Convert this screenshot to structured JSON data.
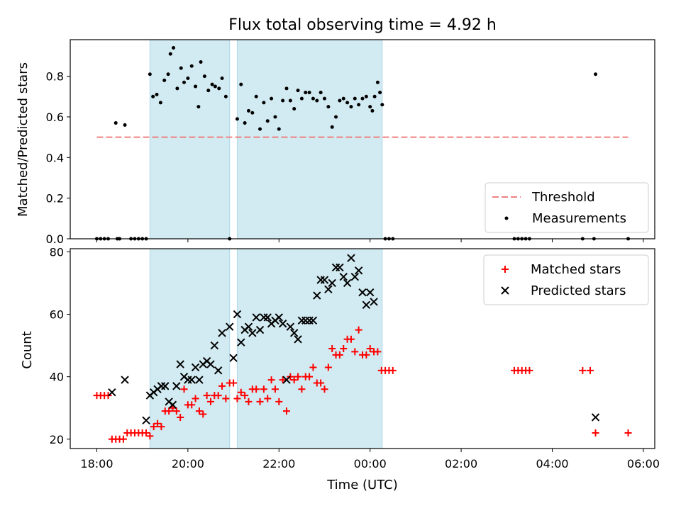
{
  "title": "Flux total observing time = 4.92 h",
  "xlabel": "Time (UTC)",
  "x_ticks": [
    "18:00",
    "20:00",
    "22:00",
    "00:00",
    "02:00",
    "04:00",
    "06:00"
  ],
  "colors": {
    "threshold": "#f08080",
    "measurement": "#000000",
    "matched": "#ff0000",
    "predicted": "#000000",
    "span_fill": "#add8e6"
  },
  "chart_data": [
    {
      "type": "scatter",
      "ylabel": "Matched/Predicted stars",
      "y_ticks": [
        "0.0",
        "0.2",
        "0.4",
        "0.6",
        "0.8"
      ],
      "xlim": [
        "17:25",
        "06:15"
      ],
      "ylim": [
        0.0,
        0.98
      ],
      "grid": false,
      "legend_placement": "lower right",
      "shaded_intervals": [
        [
          "19:10",
          "20:55"
        ],
        [
          "21:05",
          "00:16"
        ]
      ],
      "threshold": {
        "name": "Threshold",
        "value": 0.5,
        "x_range": [
          "18:00",
          "05:40"
        ],
        "style": "dashed"
      },
      "series": [
        {
          "name": "Measurements",
          "marker": "dot",
          "points": [
            [
              "18:00",
              0.0
            ],
            [
              "18:05",
              0.0
            ],
            [
              "18:10",
              0.0
            ],
            [
              "18:15",
              0.0
            ],
            [
              "18:27",
              0.0
            ],
            [
              "18:30",
              0.0
            ],
            [
              "18:45",
              0.0
            ],
            [
              "18:50",
              0.0
            ],
            [
              "18:55",
              0.0
            ],
            [
              "19:00",
              0.0
            ],
            [
              "19:05",
              0.0
            ],
            [
              "18:25",
              0.57
            ],
            [
              "18:37",
              0.56
            ],
            [
              "19:10",
              0.81
            ],
            [
              "19:14",
              0.7
            ],
            [
              "19:19",
              0.71
            ],
            [
              "19:24",
              0.67
            ],
            [
              "19:29",
              0.78
            ],
            [
              "19:34",
              0.81
            ],
            [
              "19:37",
              0.91
            ],
            [
              "19:41",
              0.94
            ],
            [
              "19:46",
              0.74
            ],
            [
              "19:51",
              0.84
            ],
            [
              "19:55",
              0.77
            ],
            [
              "20:00",
              0.79
            ],
            [
              "20:05",
              0.85
            ],
            [
              "20:10",
              0.75
            ],
            [
              "20:14",
              0.65
            ],
            [
              "20:17",
              0.87
            ],
            [
              "20:22",
              0.8
            ],
            [
              "20:27",
              0.73
            ],
            [
              "20:32",
              0.76
            ],
            [
              "20:36",
              0.75
            ],
            [
              "20:41",
              0.74
            ],
            [
              "20:45",
              0.79
            ],
            [
              "20:50",
              0.7
            ],
            [
              "20:55",
              0.0
            ],
            [
              "21:05",
              0.59
            ],
            [
              "21:10",
              0.76
            ],
            [
              "21:15",
              0.57
            ],
            [
              "21:20",
              0.63
            ],
            [
              "21:25",
              0.62
            ],
            [
              "21:30",
              0.7
            ],
            [
              "21:35",
              0.54
            ],
            [
              "21:40",
              0.67
            ],
            [
              "21:45",
              0.58
            ],
            [
              "21:50",
              0.69
            ],
            [
              "21:55",
              0.6
            ],
            [
              "22:00",
              0.54
            ],
            [
              "22:05",
              0.68
            ],
            [
              "22:10",
              0.74
            ],
            [
              "22:15",
              0.68
            ],
            [
              "22:20",
              0.64
            ],
            [
              "22:25",
              0.73
            ],
            [
              "22:30",
              0.69
            ],
            [
              "22:35",
              0.72
            ],
            [
              "22:40",
              0.72
            ],
            [
              "22:45",
              0.69
            ],
            [
              "22:50",
              0.68
            ],
            [
              "22:55",
              0.72
            ],
            [
              "23:00",
              0.69
            ],
            [
              "23:05",
              0.65
            ],
            [
              "23:10",
              0.55
            ],
            [
              "23:15",
              0.6
            ],
            [
              "23:20",
              0.68
            ],
            [
              "23:25",
              0.69
            ],
            [
              "23:30",
              0.67
            ],
            [
              "23:35",
              0.65
            ],
            [
              "23:40",
              0.69
            ],
            [
              "23:45",
              0.66
            ],
            [
              "23:50",
              0.69
            ],
            [
              "23:55",
              0.7
            ],
            [
              "00:00",
              0.65
            ],
            [
              "00:03",
              0.63
            ],
            [
              "00:06",
              0.7
            ],
            [
              "00:10",
              0.77
            ],
            [
              "00:13",
              0.72
            ],
            [
              "00:16",
              0.66
            ],
            [
              "00:20",
              0.0
            ],
            [
              "00:25",
              0.0
            ],
            [
              "00:30",
              0.0
            ],
            [
              "03:10",
              0.0
            ],
            [
              "03:15",
              0.0
            ],
            [
              "03:20",
              0.0
            ],
            [
              "03:25",
              0.0
            ],
            [
              "03:30",
              0.0
            ],
            [
              "04:40",
              0.0
            ],
            [
              "04:55",
              0.0
            ],
            [
              "04:57",
              0.81
            ],
            [
              "05:40",
              0.0
            ]
          ]
        }
      ]
    },
    {
      "type": "scatter",
      "ylabel": "Count",
      "y_ticks": [
        "20",
        "40",
        "60",
        "80"
      ],
      "xlim": [
        "17:25",
        "06:15"
      ],
      "ylim": [
        17,
        81
      ],
      "grid": false,
      "legend_placement": "upper right",
      "shaded_intervals": [
        [
          "19:10",
          "20:55"
        ],
        [
          "21:05",
          "00:16"
        ]
      ],
      "series": [
        {
          "name": "Matched stars",
          "marker": "plus",
          "points": [
            [
              "18:00",
              34
            ],
            [
              "18:05",
              34
            ],
            [
              "18:10",
              34
            ],
            [
              "18:15",
              34
            ],
            [
              "18:20",
              20
            ],
            [
              "18:25",
              20
            ],
            [
              "18:30",
              20
            ],
            [
              "18:35",
              20
            ],
            [
              "18:40",
              22
            ],
            [
              "18:45",
              22
            ],
            [
              "18:50",
              22
            ],
            [
              "18:55",
              22
            ],
            [
              "19:00",
              22
            ],
            [
              "19:05",
              22
            ],
            [
              "19:10",
              21
            ],
            [
              "19:15",
              24
            ],
            [
              "19:20",
              25
            ],
            [
              "19:25",
              24
            ],
            [
              "19:30",
              29
            ],
            [
              "19:35",
              29
            ],
            [
              "19:40",
              30
            ],
            [
              "19:45",
              29
            ],
            [
              "19:50",
              27
            ],
            [
              "19:55",
              36
            ],
            [
              "20:00",
              31
            ],
            [
              "20:05",
              31
            ],
            [
              "20:10",
              33
            ],
            [
              "20:15",
              29
            ],
            [
              "20:20",
              28
            ],
            [
              "20:25",
              34
            ],
            [
              "20:30",
              32
            ],
            [
              "20:35",
              34
            ],
            [
              "20:40",
              34
            ],
            [
              "20:45",
              37
            ],
            [
              "20:50",
              33
            ],
            [
              "20:55",
              38
            ],
            [
              "21:00",
              38
            ],
            [
              "21:05",
              33
            ],
            [
              "21:10",
              35
            ],
            [
              "21:15",
              34
            ],
            [
              "21:20",
              32
            ],
            [
              "21:25",
              36
            ],
            [
              "21:30",
              36
            ],
            [
              "21:35",
              32
            ],
            [
              "21:40",
              36
            ],
            [
              "21:45",
              33
            ],
            [
              "21:50",
              39
            ],
            [
              "21:55",
              36
            ],
            [
              "22:00",
              32
            ],
            [
              "22:05",
              39
            ],
            [
              "22:10",
              29
            ],
            [
              "22:15",
              40
            ],
            [
              "22:20",
              39
            ],
            [
              "22:25",
              40
            ],
            [
              "22:30",
              36
            ],
            [
              "22:35",
              40
            ],
            [
              "22:40",
              40
            ],
            [
              "22:45",
              43
            ],
            [
              "22:50",
              38
            ],
            [
              "22:55",
              38
            ],
            [
              "23:00",
              36
            ],
            [
              "23:05",
              43
            ],
            [
              "23:10",
              49
            ],
            [
              "23:15",
              47
            ],
            [
              "23:20",
              47
            ],
            [
              "23:25",
              49
            ],
            [
              "23:30",
              52
            ],
            [
              "23:35",
              52
            ],
            [
              "23:40",
              48
            ],
            [
              "23:45",
              55
            ],
            [
              "23:50",
              47
            ],
            [
              "23:55",
              47
            ],
            [
              "00:00",
              49
            ],
            [
              "00:05",
              48
            ],
            [
              "00:10",
              48
            ],
            [
              "00:15",
              42
            ],
            [
              "00:20",
              42
            ],
            [
              "00:25",
              42
            ],
            [
              "00:30",
              42
            ],
            [
              "03:10",
              42
            ],
            [
              "03:15",
              42
            ],
            [
              "03:20",
              42
            ],
            [
              "03:25",
              42
            ],
            [
              "03:30",
              42
            ],
            [
              "04:40",
              42
            ],
            [
              "04:50",
              42
            ],
            [
              "04:57",
              22
            ],
            [
              "05:40",
              22
            ]
          ]
        },
        {
          "name": "Predicted stars",
          "marker": "x",
          "points": [
            [
              "18:20",
              35
            ],
            [
              "18:37",
              39
            ],
            [
              "19:05",
              26
            ],
            [
              "19:10",
              34
            ],
            [
              "19:15",
              35
            ],
            [
              "19:20",
              36
            ],
            [
              "19:25",
              37
            ],
            [
              "19:30",
              37
            ],
            [
              "19:35",
              32
            ],
            [
              "19:40",
              31
            ],
            [
              "19:45",
              37
            ],
            [
              "19:50",
              44
            ],
            [
              "19:55",
              40
            ],
            [
              "20:00",
              39
            ],
            [
              "20:05",
              39
            ],
            [
              "20:10",
              43
            ],
            [
              "20:15",
              39
            ],
            [
              "20:20",
              44
            ],
            [
              "20:25",
              45
            ],
            [
              "20:30",
              44
            ],
            [
              "20:35",
              50
            ],
            [
              "20:40",
              42
            ],
            [
              "20:45",
              54
            ],
            [
              "20:55",
              56
            ],
            [
              "21:00",
              46
            ],
            [
              "21:05",
              60
            ],
            [
              "21:10",
              51
            ],
            [
              "21:15",
              55
            ],
            [
              "21:20",
              56
            ],
            [
              "21:25",
              54
            ],
            [
              "21:30",
              59
            ],
            [
              "21:35",
              55
            ],
            [
              "21:40",
              59
            ],
            [
              "21:45",
              59
            ],
            [
              "21:50",
              57
            ],
            [
              "21:55",
              58
            ],
            [
              "22:00",
              59
            ],
            [
              "22:05",
              57
            ],
            [
              "22:10",
              39
            ],
            [
              "22:15",
              56
            ],
            [
              "22:20",
              54
            ],
            [
              "22:25",
              52
            ],
            [
              "22:30",
              58
            ],
            [
              "22:35",
              58
            ],
            [
              "22:40",
              58
            ],
            [
              "22:45",
              58
            ],
            [
              "22:50",
              66
            ],
            [
              "22:55",
              71
            ],
            [
              "23:00",
              71
            ],
            [
              "23:05",
              68
            ],
            [
              "23:10",
              70
            ],
            [
              "23:15",
              75
            ],
            [
              "23:20",
              75
            ],
            [
              "23:25",
              72
            ],
            [
              "23:30",
              70
            ],
            [
              "23:35",
              78
            ],
            [
              "23:40",
              72
            ],
            [
              "23:45",
              74
            ],
            [
              "23:50",
              67
            ],
            [
              "23:55",
              63
            ],
            [
              "00:00",
              67
            ],
            [
              "00:05",
              64
            ],
            [
              "04:57",
              27
            ]
          ]
        }
      ]
    }
  ]
}
